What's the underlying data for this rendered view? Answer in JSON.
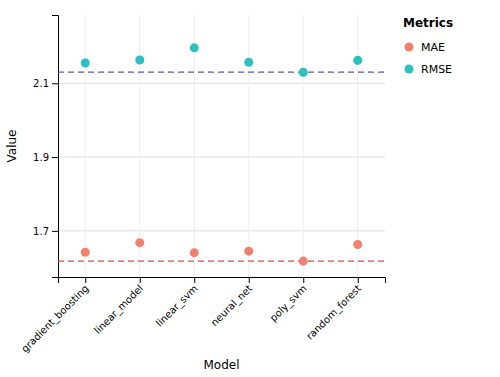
{
  "chart_data": {
    "type": "scatter",
    "x_label": "Model",
    "y_label": "Value",
    "legend_title": "Metrics",
    "categories": [
      "gradient_boosting",
      "linear_model",
      "linear_svm",
      "neural_net",
      "poly_svm",
      "random_forest"
    ],
    "series": [
      {
        "name": "MAE",
        "color": "#F08070",
        "marker": "circle",
        "values": [
          1.642,
          1.668,
          1.641,
          1.645,
          1.618,
          1.663
        ]
      },
      {
        "name": "RMSE",
        "color": "#2DC0BE",
        "marker": "circle",
        "values": [
          2.155,
          2.163,
          2.196,
          2.157,
          2.13,
          2.162
        ]
      }
    ],
    "hlines": [
      {
        "value": 2.13,
        "color": "#5A5AAA",
        "line_style": "dashed"
      },
      {
        "value": 1.618,
        "color": "#D05050",
        "line_style": "dashed"
      }
    ],
    "ylim": [
      1.575,
      2.285
    ],
    "yticks": [
      1.7,
      1.9,
      2.1
    ],
    "grid": true,
    "legend": "right"
  }
}
